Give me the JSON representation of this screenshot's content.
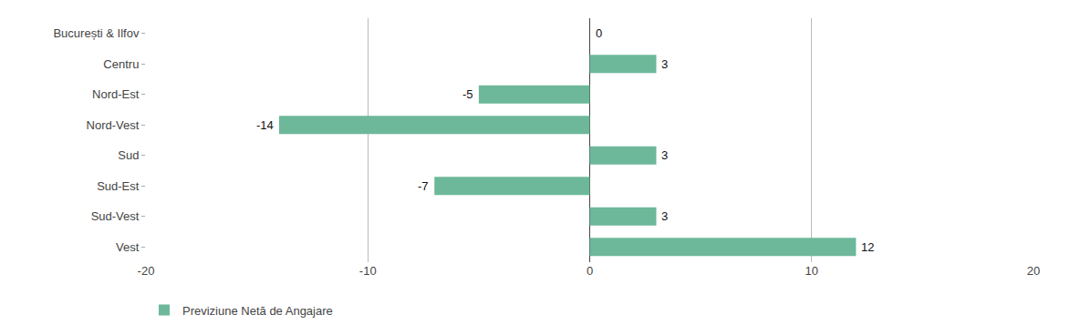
{
  "chart_data": {
    "type": "bar",
    "orientation": "horizontal",
    "categories": [
      "București & Ilfov",
      "Centru",
      "Nord-Est",
      "Nord-Vest",
      "Sud",
      "Sud-Est",
      "Sud-Vest",
      "Vest"
    ],
    "series": [
      {
        "name": "Previziune Netă de Angajare",
        "color": "#6db89a",
        "values": [
          0,
          3,
          -5,
          -14,
          3,
          -7,
          3,
          12
        ]
      }
    ],
    "xlim": [
      -20,
      20
    ],
    "xticks": [
      -20,
      -10,
      0,
      10,
      20
    ],
    "grid": true,
    "data_labels": true,
    "legend": "lower left"
  }
}
